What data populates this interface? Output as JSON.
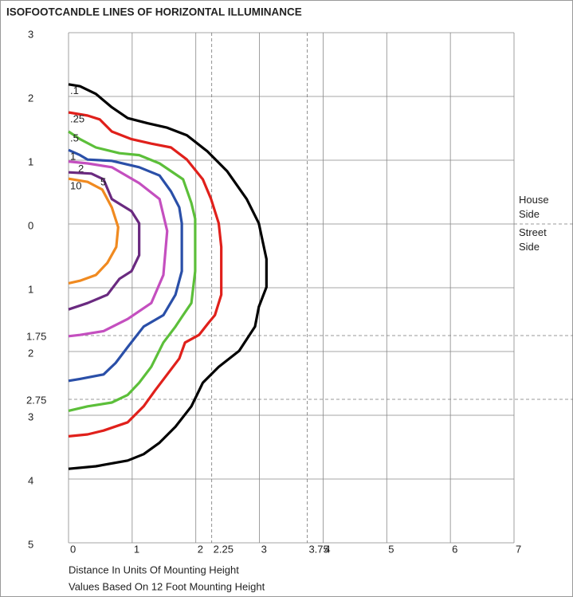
{
  "chart_data": {
    "type": "contour",
    "title": "ISOFOOTCANDLE LINES OF HORIZONTAL ILLUMINANCE",
    "x_label": "Distance In Units Of Mounting Height",
    "note": "Values Based On 12 Foot Mounting Height",
    "upper_side": "House Side",
    "lower_side": "Street Side",
    "xlim": [
      0,
      7
    ],
    "ylim": [
      -5,
      3
    ],
    "xticks": [
      0,
      1,
      2,
      3,
      4,
      5,
      6,
      7
    ],
    "yticks": [
      3,
      2,
      1,
      0,
      {
        "value": -1,
        "label": "1"
      },
      {
        "value": -2,
        "label": "2"
      },
      {
        "value": -3,
        "label": "3"
      },
      {
        "value": -4,
        "label": "4"
      },
      {
        "value": -5,
        "label": "5"
      }
    ],
    "x_ref_lines": [
      2.25,
      3.75
    ],
    "y_ref_lines": [
      {
        "value": -1.75,
        "label": "1.75"
      },
      {
        "value": -2.75,
        "label": "2.75"
      }
    ],
    "grid": true,
    "series": [
      {
        "name": ".1",
        "color": "#000000",
        "x": [
          0,
          0.18,
          0.43,
          0.68,
          0.93,
          1.24,
          1.55,
          1.86,
          2.18,
          2.49,
          2.8,
          2.99,
          3.11,
          3.11,
          2.99,
          2.93,
          2.68,
          2.36,
          2.11,
          1.93,
          1.68,
          1.43,
          1.18,
          0.93,
          0.43,
          0
        ],
        "y": [
          2.19,
          2.16,
          2.04,
          1.83,
          1.66,
          1.58,
          1.51,
          1.39,
          1.14,
          0.83,
          0.39,
          0.01,
          -0.55,
          -0.99,
          -1.3,
          -1.61,
          -1.99,
          -2.24,
          -2.49,
          -2.86,
          -3.18,
          -3.43,
          -3.61,
          -3.71,
          -3.8,
          -3.84
        ]
      },
      {
        "name": ".25",
        "color": "#e0201b",
        "x": [
          0,
          0.3,
          0.49,
          0.68,
          0.99,
          1.3,
          1.61,
          1.86,
          2.11,
          2.24,
          2.36,
          2.4,
          2.4,
          2.3,
          2.2,
          2.05,
          1.83,
          1.74,
          1.55,
          1.36,
          1.18,
          0.93,
          0.55,
          0.3,
          0
        ],
        "y": [
          1.75,
          1.7,
          1.64,
          1.45,
          1.33,
          1.26,
          1.2,
          1.01,
          0.7,
          0.39,
          0.01,
          -0.36,
          -1.11,
          -1.43,
          -1.55,
          -1.74,
          -1.86,
          -2.11,
          -2.36,
          -2.61,
          -2.86,
          -3.11,
          -3.24,
          -3.3,
          -3.33
        ]
      },
      {
        "name": ".5",
        "color": "#5cbf3a",
        "x": [
          0,
          0.18,
          0.43,
          0.8,
          1.11,
          1.43,
          1.8,
          1.93,
          1.99,
          1.99,
          1.93,
          1.8,
          1.68,
          1.49,
          1.3,
          1.11,
          0.93,
          0.68,
          0.3,
          0
        ],
        "y": [
          1.45,
          1.33,
          1.2,
          1.11,
          1.08,
          0.95,
          0.7,
          0.33,
          0.08,
          -0.74,
          -1.24,
          -1.43,
          -1.61,
          -1.86,
          -2.24,
          -2.49,
          -2.68,
          -2.8,
          -2.86,
          -2.93
        ]
      },
      {
        "name": "1",
        "color": "#2a4fa8",
        "x": [
          0,
          0.18,
          0.3,
          0.68,
          1.11,
          1.43,
          1.61,
          1.74,
          1.78,
          1.78,
          1.68,
          1.49,
          1.18,
          0.93,
          0.74,
          0.55,
          0.18,
          0
        ],
        "y": [
          1.16,
          1.08,
          1.01,
          0.99,
          0.89,
          0.76,
          0.51,
          0.26,
          0.01,
          -0.74,
          -1.11,
          -1.43,
          -1.61,
          -1.93,
          -2.18,
          -2.36,
          -2.43,
          -2.46
        ]
      },
      {
        "name": "2",
        "color": "#c44fbf",
        "x": [
          0,
          0.3,
          0.68,
          1.11,
          1.43,
          1.55,
          1.49,
          1.3,
          0.93,
          0.55,
          0.18,
          0
        ],
        "y": [
          0.98,
          0.95,
          0.89,
          0.64,
          0.39,
          -0.11,
          -0.8,
          -1.24,
          -1.49,
          -1.68,
          -1.74,
          -1.76
        ]
      },
      {
        "name": "5",
        "color": "#6a2a80",
        "x": [
          0,
          0.36,
          0.55,
          0.68,
          0.99,
          1.11,
          1.11,
          0.99,
          0.8,
          0.61,
          0.3,
          0
        ],
        "y": [
          0.81,
          0.79,
          0.7,
          0.39,
          0.2,
          0.01,
          -0.49,
          -0.74,
          -0.86,
          -1.11,
          -1.24,
          -1.34
        ]
      },
      {
        "name": "10",
        "color": "#f08a20",
        "x": [
          0,
          0.3,
          0.53,
          0.68,
          0.78,
          0.75,
          0.61,
          0.43,
          0.18,
          0
        ],
        "y": [
          0.71,
          0.66,
          0.54,
          0.26,
          -0.05,
          -0.36,
          -0.61,
          -0.8,
          -0.89,
          -0.93
        ]
      }
    ]
  }
}
